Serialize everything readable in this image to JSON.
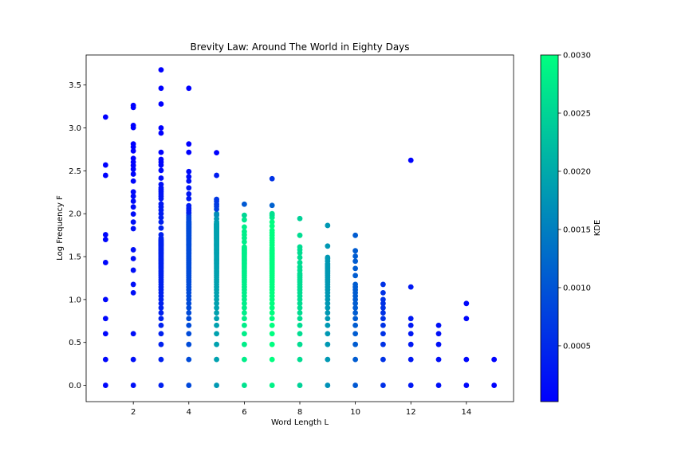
{
  "chart_data": {
    "type": "scatter",
    "title": "Brevity Law: Around The World in Eighty Days",
    "xlabel": "Word Length L",
    "ylabel": "Log Frequency F",
    "xlim": [
      0.3,
      15.7
    ],
    "ylim": [
      -0.19,
      3.85
    ],
    "xticks": [
      2,
      4,
      6,
      8,
      10,
      12,
      14
    ],
    "yticks": [
      0.0,
      0.5,
      1.0,
      1.5,
      2.0,
      2.5,
      3.0,
      3.5
    ],
    "xtick_labels": [
      "2",
      "4",
      "6",
      "8",
      "10",
      "12",
      "14"
    ],
    "ytick_labels": [
      "0.0",
      "0.5",
      "1.0",
      "1.5",
      "2.0",
      "2.5",
      "3.0",
      "3.5"
    ],
    "grid": false,
    "colorbar": {
      "label": "KDE",
      "range": [
        2e-05,
        0.003
      ],
      "ticks": [
        0.0005,
        0.001,
        0.0015,
        0.002,
        0.0025,
        0.003
      ],
      "tick_labels": [
        "0.0005",
        "0.0010",
        "0.0015",
        "0.0020",
        "0.0025",
        "0.0030"
      ],
      "colormap": "winter",
      "color_low": "#0000ff",
      "color_high": "#00ff80"
    },
    "columns": [
      {
        "x": 1,
        "y": [
          0,
          0.301,
          0.602,
          0.778,
          1.0,
          1.431,
          1.699,
          1.756,
          2.447,
          2.568,
          3.127
        ],
        "kde": 0.0001
      },
      {
        "x": 2,
        "y": [
          0,
          0.301,
          0.602,
          1.079,
          1.176,
          1.342,
          1.477,
          1.58,
          1.826,
          1.903,
          1.996,
          2.079,
          2.146,
          2.204,
          2.255,
          2.38,
          2.462,
          2.519,
          2.562,
          2.602,
          2.645,
          2.732,
          2.778,
          2.813,
          3.004,
          3.029,
          3.238,
          3.262
        ],
        "kde": 0.0002
      },
      {
        "x": 3,
        "y": [
          0,
          0.301,
          0.477,
          0.602,
          0.699,
          0.778,
          0.845,
          0.903,
          0.954,
          1.0,
          1.041,
          1.079,
          1.114,
          1.146,
          1.176,
          1.204,
          1.23,
          1.255,
          1.279,
          1.301,
          1.322,
          1.342,
          1.362,
          1.38,
          1.398,
          1.415,
          1.431,
          1.447,
          1.462,
          1.477,
          1.491,
          1.505,
          1.519,
          1.531,
          1.544,
          1.556,
          1.568,
          1.58,
          1.591,
          1.602,
          1.613,
          1.623,
          1.633,
          1.643,
          1.653,
          1.663,
          1.672,
          1.681,
          1.69,
          1.699,
          1.716,
          1.756,
          1.833,
          1.903,
          1.954,
          2.0,
          2.041,
          2.079,
          2.114,
          2.176,
          2.204,
          2.23,
          2.255,
          2.279,
          2.301,
          2.342,
          2.415,
          2.505,
          2.568,
          2.602,
          2.633,
          2.716,
          2.94,
          3.0,
          3.279,
          3.462,
          3.677
        ],
        "kde": 0.0004
      },
      {
        "x": 4,
        "y": [
          0,
          0.301,
          0.477,
          0.602,
          0.699,
          0.778,
          0.845,
          0.903,
          0.954,
          1.0,
          1.041,
          1.079,
          1.114,
          1.146,
          1.176,
          1.204,
          1.23,
          1.255,
          1.279,
          1.301,
          1.322,
          1.342,
          1.362,
          1.38,
          1.398,
          1.415,
          1.431,
          1.447,
          1.462,
          1.477,
          1.491,
          1.505,
          1.519,
          1.531,
          1.544,
          1.556,
          1.568,
          1.58,
          1.591,
          1.602,
          1.613,
          1.623,
          1.633,
          1.643,
          1.653,
          1.663,
          1.672,
          1.681,
          1.69,
          1.699,
          1.708,
          1.716,
          1.724,
          1.732,
          1.74,
          1.748,
          1.756,
          1.763,
          1.771,
          1.778,
          1.785,
          1.792,
          1.799,
          1.806,
          1.813,
          1.82,
          1.826,
          1.833,
          1.839,
          1.845,
          1.851,
          1.857,
          1.863,
          1.869,
          1.875,
          1.881,
          1.886,
          1.892,
          1.898,
          1.903,
          1.914,
          1.929,
          1.944,
          1.959,
          1.978,
          2.0,
          2.017,
          2.041,
          2.064,
          2.093,
          2.176,
          2.23,
          2.301,
          2.38,
          2.431,
          2.491,
          2.716,
          2.813,
          3.462
        ],
        "kde": 0.0009
      },
      {
        "x": 5,
        "y": [
          0,
          0.301,
          0.477,
          0.602,
          0.699,
          0.778,
          0.845,
          0.903,
          0.954,
          1.0,
          1.041,
          1.079,
          1.114,
          1.146,
          1.176,
          1.204,
          1.23,
          1.255,
          1.279,
          1.301,
          1.322,
          1.342,
          1.362,
          1.38,
          1.398,
          1.415,
          1.431,
          1.447,
          1.462,
          1.477,
          1.491,
          1.505,
          1.519,
          1.531,
          1.544,
          1.556,
          1.568,
          1.58,
          1.591,
          1.602,
          1.613,
          1.623,
          1.633,
          1.643,
          1.653,
          1.663,
          1.672,
          1.681,
          1.69,
          1.699,
          1.708,
          1.716,
          1.724,
          1.732,
          1.74,
          1.748,
          1.756,
          1.763,
          1.771,
          1.778,
          1.785,
          1.792,
          1.799,
          1.806,
          1.813,
          1.82,
          1.826,
          1.833,
          1.839,
          1.845,
          1.851,
          1.857,
          1.863,
          1.869,
          1.875,
          1.881,
          1.886,
          1.903,
          1.94,
          1.982,
          2.0,
          2.053,
          2.086,
          2.111,
          2.146,
          2.167,
          2.447,
          2.711
        ],
        "kde": 0.0019
      },
      {
        "x": 6,
        "y": [
          0,
          0.301,
          0.477,
          0.602,
          0.699,
          0.778,
          0.845,
          0.903,
          0.954,
          1.0,
          1.041,
          1.079,
          1.114,
          1.146,
          1.176,
          1.204,
          1.23,
          1.255,
          1.279,
          1.301,
          1.322,
          1.342,
          1.362,
          1.38,
          1.398,
          1.415,
          1.431,
          1.447,
          1.462,
          1.477,
          1.491,
          1.505,
          1.519,
          1.531,
          1.544,
          1.556,
          1.568,
          1.58,
          1.591,
          1.602,
          1.613,
          1.672,
          1.716,
          1.756,
          1.792,
          1.845,
          1.929,
          1.982,
          2.111
        ],
        "kde": 0.0028
      },
      {
        "x": 7,
        "y": [
          0,
          0.301,
          0.477,
          0.602,
          0.699,
          0.778,
          0.845,
          0.903,
          0.954,
          1.0,
          1.041,
          1.079,
          1.114,
          1.146,
          1.176,
          1.204,
          1.23,
          1.255,
          1.279,
          1.301,
          1.322,
          1.342,
          1.362,
          1.38,
          1.398,
          1.415,
          1.431,
          1.447,
          1.462,
          1.477,
          1.491,
          1.505,
          1.519,
          1.531,
          1.544,
          1.556,
          1.568,
          1.58,
          1.602,
          1.633,
          1.663,
          1.69,
          1.716,
          1.748,
          1.778,
          1.806,
          1.857,
          1.903,
          1.954,
          1.982,
          2.0,
          2.097,
          2.408
        ],
        "kde": 0.003
      },
      {
        "x": 8,
        "y": [
          0,
          0.301,
          0.477,
          0.602,
          0.699,
          0.778,
          0.845,
          0.903,
          0.954,
          1.0,
          1.041,
          1.079,
          1.114,
          1.146,
          1.176,
          1.204,
          1.23,
          1.255,
          1.279,
          1.301,
          1.342,
          1.38,
          1.431,
          1.491,
          1.544,
          1.58,
          1.613,
          1.748,
          1.944
        ],
        "kde": 0.0026
      },
      {
        "x": 9,
        "y": [
          0,
          0.301,
          0.477,
          0.602,
          0.699,
          0.778,
          0.845,
          0.903,
          0.954,
          1.0,
          1.041,
          1.079,
          1.114,
          1.146,
          1.176,
          1.204,
          1.23,
          1.255,
          1.279,
          1.301,
          1.322,
          1.342,
          1.362,
          1.38,
          1.398,
          1.415,
          1.447,
          1.477,
          1.491,
          1.623,
          1.863
        ],
        "kde": 0.0018
      },
      {
        "x": 10,
        "y": [
          0,
          0.301,
          0.477,
          0.602,
          0.699,
          0.778,
          0.845,
          0.903,
          0.954,
          1.0,
          1.041,
          1.079,
          1.114,
          1.146,
          1.176,
          1.279,
          1.362,
          1.447,
          1.505,
          1.568,
          1.748
        ],
        "kde": 0.0011
      },
      {
        "x": 11,
        "y": [
          0,
          0.301,
          0.477,
          0.602,
          0.699,
          0.778,
          0.845,
          0.903,
          0.954,
          1.0,
          1.079,
          1.176
        ],
        "kde": 0.0006
      },
      {
        "x": 12,
        "y": [
          0,
          0.301,
          0.477,
          0.602,
          0.699,
          0.778,
          1.146,
          2.623
        ],
        "kde": 0.0003
      },
      {
        "x": 13,
        "y": [
          0,
          0.301,
          0.477,
          0.602,
          0.699
        ],
        "kde": 0.0002
      },
      {
        "x": 14,
        "y": [
          0,
          0.301,
          0.778,
          0.954
        ],
        "kde": 0.0001
      },
      {
        "x": 15,
        "y": [
          0,
          0.301
        ],
        "kde": 5e-05
      }
    ]
  }
}
